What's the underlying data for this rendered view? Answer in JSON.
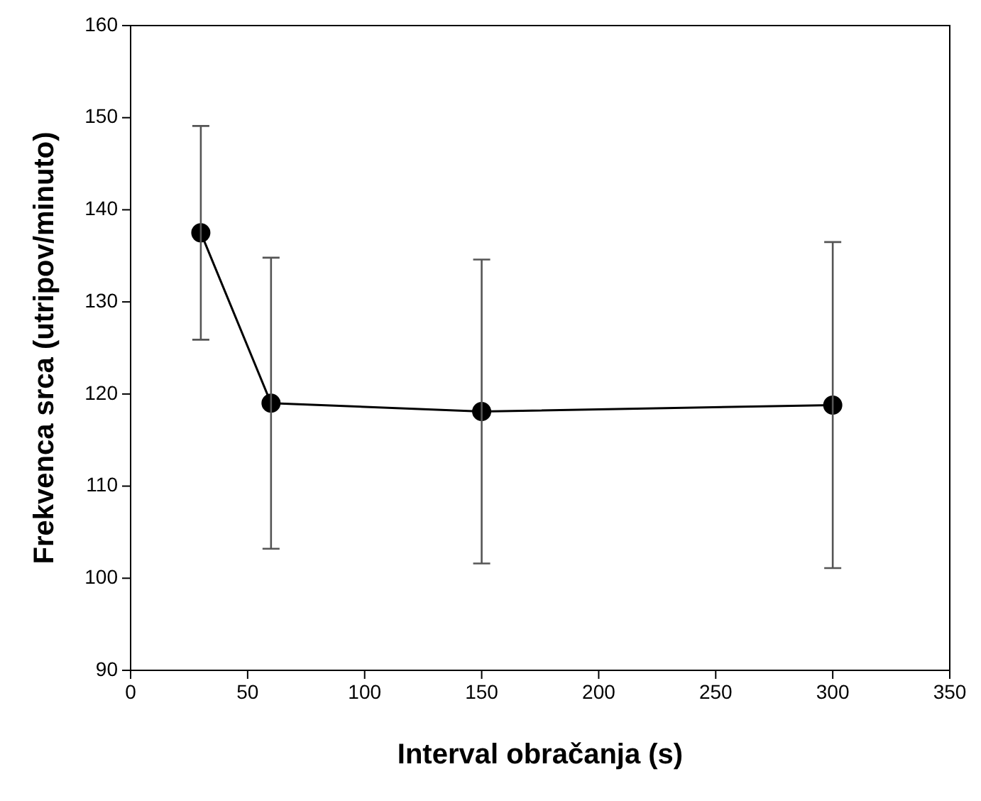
{
  "chart_data": {
    "type": "line",
    "xlabel": "Interval obračanja (s)",
    "ylabel": "Frekvenca srca (utripov/minuto)",
    "x": [
      30,
      60,
      150,
      300
    ],
    "values": [
      137.5,
      119.0,
      118.1,
      118.8
    ],
    "errors": [
      11.6,
      15.8,
      16.5,
      17.7
    ],
    "color": "#000000",
    "marker": "circle",
    "line_style": "solid",
    "grid": false,
    "legend": false,
    "xlim": [
      0,
      350
    ],
    "xticks": [
      0,
      50,
      100,
      150,
      200,
      250,
      300,
      350
    ],
    "ylim": [
      90,
      160
    ],
    "yticks": [
      90,
      100,
      110,
      120,
      130,
      140,
      150,
      160
    ]
  }
}
